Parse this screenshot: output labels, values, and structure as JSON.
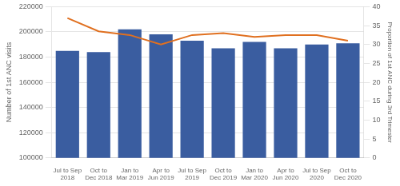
{
  "chart_data": {
    "type": "bar",
    "categories": [
      "Jul to Sep\n2018",
      "Oct to\nDec 2018",
      "Jan to\nMar 2019",
      "Apr to\nJun 2019",
      "Jul to Sep\n2019",
      "Oct to\nDec 2019",
      "Jan to\nMar 2020",
      "Apr to\nJun 2020",
      "Jul to Sep\n2020",
      "Oct to\nDec 2020"
    ],
    "series": [
      {
        "type": "bar",
        "color": "#3A5DA0",
        "values": [
          185000,
          184000,
          202000,
          198000,
          193000,
          187000,
          192000,
          187000,
          190000,
          191000
        ]
      },
      {
        "type": "line",
        "color": "#E07020",
        "axis": "y2",
        "values": [
          37.0,
          33.5,
          32.5,
          30.0,
          32.5,
          33.0,
          32.0,
          32.5,
          32.5,
          31.0
        ]
      }
    ],
    "ylabel": "Number of 1st ANC visits",
    "y2label": "Proportion of 1st ANC during 3rd Trimester",
    "ylim": [
      100000,
      220000
    ],
    "yticks": [
      100000,
      120000,
      140000,
      160000,
      180000,
      200000,
      220000
    ],
    "y2lim": [
      0,
      40
    ],
    "y2ticks": [
      0,
      5,
      10,
      15,
      20,
      25,
      30,
      35,
      40
    ],
    "grid": true
  }
}
